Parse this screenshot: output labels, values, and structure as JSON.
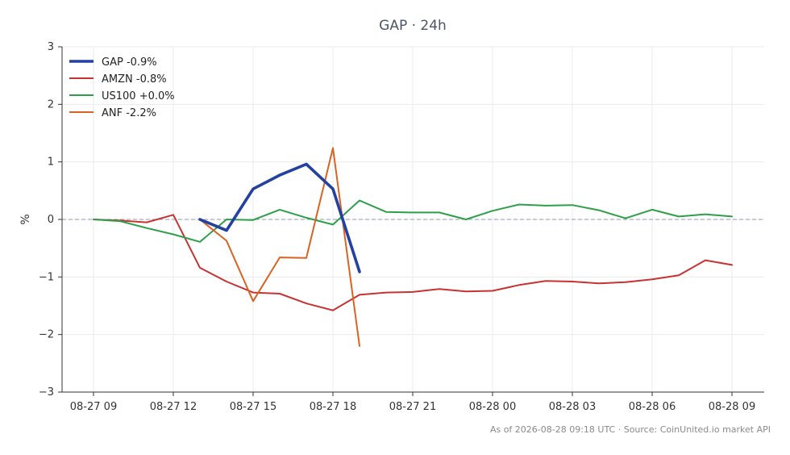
{
  "chart_data": {
    "type": "line",
    "title": "GAP · 24h",
    "xlabel": "",
    "ylabel": "%",
    "ylim": [
      -3,
      3
    ],
    "x_tick_labels": [
      "08-27 09",
      "08-27 12",
      "08-27 15",
      "08-27 18",
      "08-27 21",
      "08-28 00",
      "08-28 03",
      "08-28 06",
      "08-28 09"
    ],
    "y_ticks": [
      -3,
      -2,
      -1,
      0,
      1,
      2,
      3
    ],
    "y_tick_labels": [
      "−3",
      "−2",
      "−1",
      "0",
      "1",
      "2",
      "3"
    ],
    "grid": true,
    "zero_line": true,
    "legend_position": "top-left",
    "series": [
      {
        "name": "GAP -0.9%",
        "color": "#2341a0",
        "x": [
          13,
          14,
          15,
          16,
          17,
          18,
          19
        ],
        "values": [
          0.0,
          -0.19,
          0.53,
          0.77,
          0.96,
          0.53,
          -0.91
        ]
      },
      {
        "name": "AMZN -0.8%",
        "color": "#c83232",
        "x": [
          9,
          10,
          11,
          12,
          13,
          14,
          15,
          16,
          17,
          18,
          19,
          20,
          21,
          22,
          23,
          24,
          25,
          26,
          27,
          28,
          29,
          30,
          31,
          32,
          33
        ],
        "values": [
          0.0,
          -0.02,
          -0.05,
          0.08,
          -0.84,
          -1.08,
          -1.27,
          -1.29,
          -1.46,
          -1.58,
          -1.31,
          -1.27,
          -1.26,
          -1.21,
          -1.25,
          -1.24,
          -1.14,
          -1.07,
          -1.08,
          -1.11,
          -1.09,
          -1.04,
          -0.97,
          -0.71,
          -0.79
        ]
      },
      {
        "name": "US100 +0.0%",
        "color": "#2ca048",
        "x": [
          9,
          10,
          11,
          12,
          13,
          14,
          15,
          16,
          17,
          18,
          19,
          20,
          21,
          22,
          23,
          24,
          25,
          26,
          27,
          28,
          29,
          30,
          31,
          32,
          33
        ],
        "values": [
          0.0,
          -0.03,
          -0.15,
          -0.26,
          -0.39,
          0.0,
          -0.01,
          0.17,
          0.03,
          -0.09,
          0.33,
          0.13,
          0.12,
          0.12,
          0.0,
          0.15,
          0.26,
          0.24,
          0.25,
          0.16,
          0.02,
          0.17,
          0.05,
          0.09,
          0.05
        ]
      },
      {
        "name": "ANF -2.2%",
        "color": "#d96322",
        "x": [
          13,
          14,
          15,
          16,
          17,
          18,
          19
        ],
        "values": [
          0.0,
          -0.37,
          -1.42,
          -0.66,
          -0.67,
          1.24,
          -2.2
        ]
      }
    ]
  },
  "footer": "As of 2026-08-28 09:18 UTC · Source: CoinUnited.io market API"
}
